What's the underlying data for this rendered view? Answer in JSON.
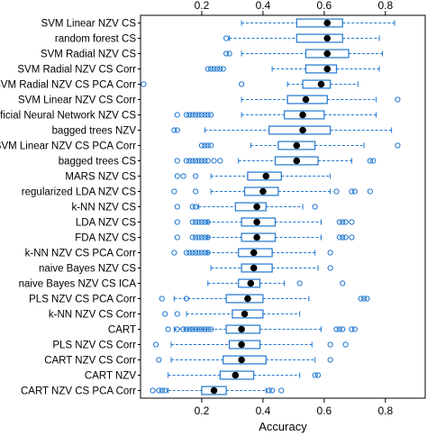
{
  "chart_data": {
    "type": "boxplot",
    "xlabel": "Accuracy",
    "xlim": [
      0.0,
      0.93
    ],
    "xticks": [
      0.2,
      0.4,
      0.6,
      0.8
    ],
    "xtick_labels": [
      "0.2",
      "0.4",
      "0.6",
      "0.8"
    ],
    "grid": false,
    "colors": {
      "box": "#1f77d0",
      "median_dot": "#000000",
      "frame": "#000000"
    },
    "series": [
      {
        "label": "SVM Linear NZV CS",
        "wmin": 0.33,
        "q1": 0.51,
        "median": 0.61,
        "q3": 0.66,
        "wmax": 0.83,
        "outliers": []
      },
      {
        "label": "random forest CS",
        "wmin": 0.29,
        "q1": 0.51,
        "median": 0.61,
        "q3": 0.66,
        "wmax": 0.78,
        "outliers": [
          0.28
        ]
      },
      {
        "label": "SVM Radial NZV CS",
        "wmin": 0.33,
        "q1": 0.54,
        "median": 0.61,
        "q3": 0.68,
        "wmax": 0.79,
        "outliers": [
          0.28,
          0.29
        ]
      },
      {
        "label": "SVM Radial NZV CS Corr",
        "wmin": 0.43,
        "q1": 0.54,
        "median": 0.61,
        "q3": 0.64,
        "wmax": 0.78,
        "outliers": [
          0.22,
          0.23,
          0.24,
          0.25,
          0.26,
          0.27
        ]
      },
      {
        "label": "SVM Radial NZV CS PCA Corr",
        "wmin": 0.48,
        "q1": 0.53,
        "median": 0.59,
        "q3": 0.62,
        "wmax": 0.71,
        "outliers": [
          0.01,
          0.33
        ]
      },
      {
        "label": "SVM Linear NZV CS Corr",
        "wmin": 0.33,
        "q1": 0.48,
        "median": 0.54,
        "q3": 0.61,
        "wmax": 0.77,
        "outliers": [
          0.84
        ]
      },
      {
        "label": "Artificial Neural Network NZV CS",
        "wmin": 0.33,
        "q1": 0.47,
        "median": 0.53,
        "q3": 0.6,
        "wmax": 0.77,
        "outliers": [
          0.12,
          0.15,
          0.16,
          0.17,
          0.18,
          0.19,
          0.2,
          0.21,
          0.22,
          0.23
        ]
      },
      {
        "label": "bagged trees NZV",
        "wmin": 0.21,
        "q1": 0.42,
        "median": 0.53,
        "q3": 0.62,
        "wmax": 0.82,
        "outliers": [
          0.11,
          0.12
        ]
      },
      {
        "label": "SVM Linear NZV CS PCA Corr",
        "wmin": 0.36,
        "q1": 0.45,
        "median": 0.51,
        "q3": 0.57,
        "wmax": 0.73,
        "outliers": [
          0.2,
          0.21,
          0.22,
          0.23,
          0.84
        ]
      },
      {
        "label": "bagged trees CS",
        "wmin": 0.32,
        "q1": 0.44,
        "median": 0.51,
        "q3": 0.58,
        "wmax": 0.69,
        "outliers": [
          0.12,
          0.15,
          0.16,
          0.17,
          0.18,
          0.19,
          0.2,
          0.21,
          0.22,
          0.24,
          0.26,
          0.75,
          0.76
        ]
      },
      {
        "label": "MARS NZV CS",
        "wmin": 0.23,
        "q1": 0.35,
        "median": 0.41,
        "q3": 0.46,
        "wmax": 0.62,
        "outliers": [
          0.12,
          0.14,
          0.18
        ]
      },
      {
        "label": "regularized LDA NZV CS",
        "wmin": 0.23,
        "q1": 0.34,
        "median": 0.4,
        "q3": 0.45,
        "wmax": 0.62,
        "outliers": [
          0.11,
          0.18,
          0.64,
          0.69,
          0.7,
          0.75
        ]
      },
      {
        "label": "k-NN NZV CS",
        "wmin": 0.19,
        "q1": 0.31,
        "median": 0.38,
        "q3": 0.41,
        "wmax": 0.53,
        "outliers": [
          0.12,
          0.17,
          0.18,
          0.57
        ]
      },
      {
        "label": "LDA NZV CS",
        "wmin": 0.22,
        "q1": 0.33,
        "median": 0.38,
        "q3": 0.44,
        "wmax": 0.59,
        "outliers": [
          0.12,
          0.17,
          0.18,
          0.19,
          0.2,
          0.21,
          0.22,
          0.65,
          0.66,
          0.67,
          0.69
        ]
      },
      {
        "label": "FDA NZV CS",
        "wmin": 0.22,
        "q1": 0.33,
        "median": 0.38,
        "q3": 0.44,
        "wmax": 0.59,
        "outliers": [
          0.12,
          0.17,
          0.18,
          0.19,
          0.2,
          0.21,
          0.22,
          0.65,
          0.66,
          0.67,
          0.69
        ]
      },
      {
        "label": "k-NN NZV CS PCA Corr",
        "wmin": 0.22,
        "q1": 0.32,
        "median": 0.37,
        "q3": 0.43,
        "wmax": 0.57,
        "outliers": [
          0.11,
          0.15,
          0.16,
          0.17,
          0.18,
          0.19,
          0.2,
          0.21,
          0.22,
          0.62
        ]
      },
      {
        "label": "naive Bayes NZV CS",
        "wmin": 0.23,
        "q1": 0.33,
        "median": 0.37,
        "q3": 0.43,
        "wmax": 0.58,
        "outliers": [
          0.62
        ]
      },
      {
        "label": "naive Bayes NZV CS ICA",
        "wmin": 0.22,
        "q1": 0.32,
        "median": 0.36,
        "q3": 0.39,
        "wmax": 0.47,
        "outliers": [
          0.52,
          0.66
        ]
      },
      {
        "label": "PLS NZV CS PCA Corr",
        "wmin": 0.11,
        "q1": 0.28,
        "median": 0.35,
        "q3": 0.4,
        "wmax": 0.55,
        "outliers": [
          0.07,
          0.15,
          0.72,
          0.73,
          0.74
        ]
      },
      {
        "label": "k-NN NZV CS Corr",
        "wmin": 0.15,
        "q1": 0.3,
        "median": 0.34,
        "q3": 0.4,
        "wmax": 0.52,
        "outliers": [
          0.08,
          0.12
        ]
      },
      {
        "label": "CART",
        "wmin": 0.11,
        "q1": 0.28,
        "median": 0.33,
        "q3": 0.39,
        "wmax": 0.59,
        "outliers": [
          0.09,
          0.12,
          0.14,
          0.15,
          0.16,
          0.17,
          0.18,
          0.19,
          0.2,
          0.21,
          0.22,
          0.23,
          0.64,
          0.65,
          0.66,
          0.69,
          0.7
        ]
      },
      {
        "label": "PLS NZV CS Corr",
        "wmin": 0.1,
        "q1": 0.29,
        "median": 0.33,
        "q3": 0.39,
        "wmax": 0.56,
        "outliers": [
          0.05,
          0.62,
          0.67
        ]
      },
      {
        "label": "CART NZV CS Corr",
        "wmin": 0.1,
        "q1": 0.27,
        "median": 0.33,
        "q3": 0.41,
        "wmax": 0.57,
        "outliers": [
          0.06,
          0.62
        ]
      },
      {
        "label": "CART NZV",
        "wmin": 0.09,
        "q1": 0.26,
        "median": 0.31,
        "q3": 0.37,
        "wmax": 0.52,
        "outliers": [
          0.57,
          0.58
        ]
      },
      {
        "label": "CART NZV CS PCA Corr",
        "wmin": 0.09,
        "q1": 0.2,
        "median": 0.24,
        "q3": 0.28,
        "wmax": 0.41,
        "outliers": [
          0.04,
          0.06,
          0.07,
          0.08,
          0.42,
          0.43,
          0.46
        ]
      }
    ]
  }
}
